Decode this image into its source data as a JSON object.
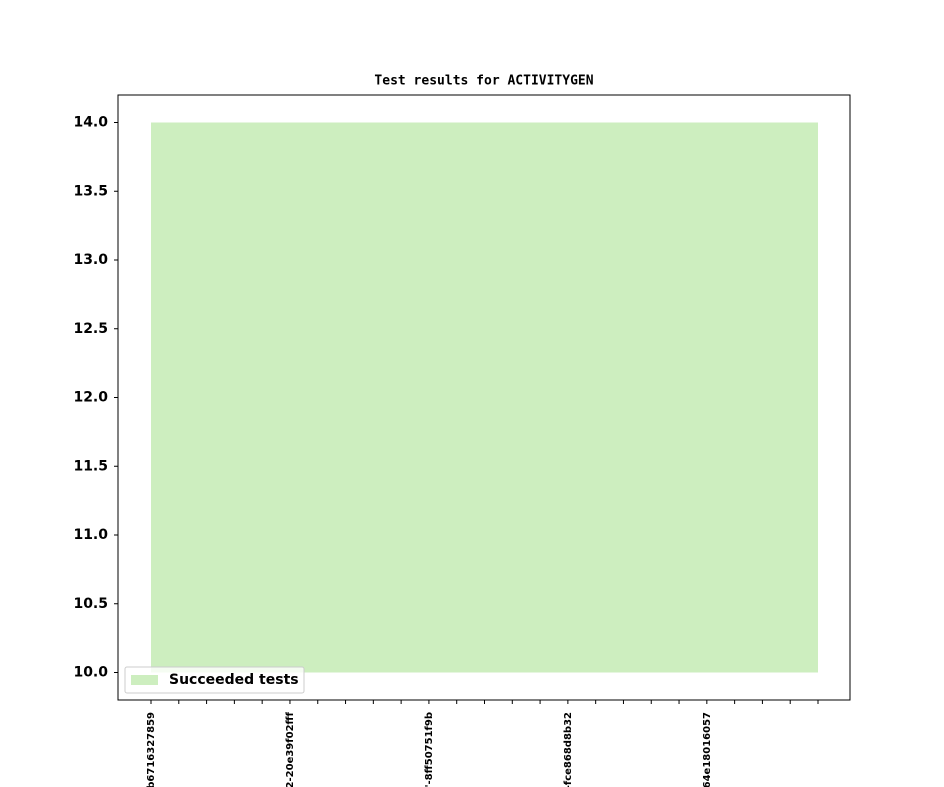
{
  "chart_data": {
    "type": "area",
    "title": "Test results for ACTIVITYGEN",
    "categories": [
      "b6716327859",
      null,
      null,
      null,
      null,
      "2-20e39f02fff",
      null,
      null,
      null,
      null,
      "'-8ff50751f9b",
      null,
      null,
      null,
      null,
      "-fce868d8b32",
      null,
      null,
      null,
      null,
      "64e18016057",
      null,
      null,
      null,
      null
    ],
    "series": [
      {
        "name": "Succeeded tests",
        "color": "#cdeebf",
        "values": [
          14,
          14,
          14,
          14,
          14,
          14,
          14,
          14,
          14,
          14,
          14,
          14,
          14,
          14,
          14,
          14,
          14,
          14,
          14,
          14,
          14,
          14,
          14,
          14,
          14
        ],
        "lower": [
          10,
          10,
          10,
          10,
          10,
          10,
          10,
          10,
          10,
          10,
          10,
          10,
          10,
          10,
          10,
          10,
          10,
          10,
          10,
          10,
          10,
          10,
          10,
          10,
          10
        ]
      }
    ],
    "ylim": [
      9.8,
      14.2
    ],
    "yticks": [
      {
        "value": 10,
        "label": "10.0"
      },
      {
        "value": 10.5,
        "label": "10.5"
      },
      {
        "value": 11,
        "label": "11.0"
      },
      {
        "value": 11.5,
        "label": "11.5"
      },
      {
        "value": 12,
        "label": "12.0"
      },
      {
        "value": 12.5,
        "label": "12.5"
      },
      {
        "value": 13,
        "label": "13.0"
      },
      {
        "value": 13.5,
        "label": "13.5"
      },
      {
        "value": 14,
        "label": "14.0"
      }
    ],
    "legend": "lower left"
  }
}
